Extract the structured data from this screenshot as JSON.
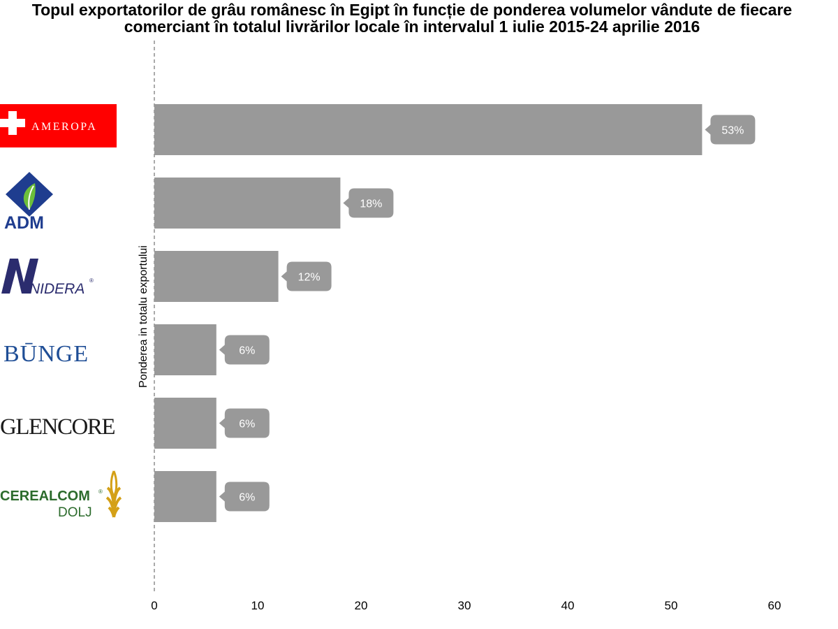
{
  "chart_data": {
    "type": "bar",
    "orientation": "horizontal",
    "title": "Topul exportatorilor de grâu românesc în Egipt în funcție de ponderea volumelor vândute de fiecare comerciant în totalul livrărilor locale în intervalul 1 iulie 2015-24 aprilie 2016",
    "ylabel": "Ponderea in totalu exportului",
    "xlabel": "",
    "categories": [
      "AMEROPA",
      "ADM",
      "NIDERA",
      "BUNGE",
      "GLENCORE",
      "CEREALCOM DOLJ"
    ],
    "values": [
      53,
      18,
      12,
      6,
      6,
      6
    ],
    "value_labels": [
      "53%",
      "18%",
      "12%",
      "6%",
      "6%",
      "6%"
    ],
    "xlim": [
      0,
      60
    ],
    "x_ticks": [
      0,
      10,
      20,
      30,
      40,
      50,
      60
    ],
    "grid": false,
    "legend": "none",
    "colors": {
      "bar": "#999999",
      "label_bubble": "#999999",
      "label_text": "#ffffff",
      "zero_line": "#555555"
    }
  },
  "logos": {
    "ameropa": {
      "text": "AMEROPA",
      "bg": "#ff0000",
      "fg": "#ffffff"
    },
    "adm": {
      "text": "ADM",
      "color": "#1f3d8f",
      "leaf": "#6cbf3b"
    },
    "nidera": {
      "text": "NIDERA",
      "mark": "®",
      "color": "#2b2c6e"
    },
    "bunge": {
      "text": "BŪNGE",
      "color": "#1f4e96"
    },
    "glencore": {
      "text": "GLENCORE",
      "color": "#1a1a1a"
    },
    "cerealcom": {
      "text": "CEREALCOM",
      "mark": "®",
      "sub": "DOLJ",
      "color": "#2c6b2c",
      "wheat": "#d4a017"
    }
  }
}
